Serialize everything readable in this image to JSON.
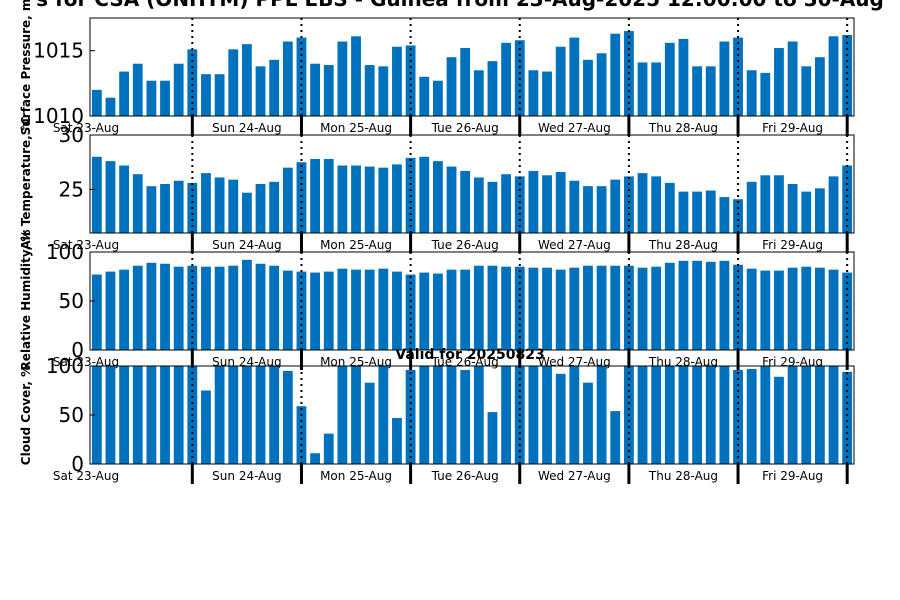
{
  "title": "s for CSA (ONHTM) PPL EBS  - Guinea from 23-Aug-2025 12:00:00 to 30-Aug",
  "valid_text": "Valid for 20250823",
  "colors": {
    "bar": "#0072BD",
    "axis": "#000000",
    "background": "#ffffff"
  },
  "chart_data": [
    {
      "type": "bar",
      "ylabel": "Surface Pressure, m",
      "ylim": [
        1010,
        1017.5
      ],
      "yticks": [
        1010,
        1015
      ],
      "days": [
        "Sat 23-Aug",
        "Sun 24-Aug",
        "Mon 25-Aug",
        "Tue 26-Aug",
        "Wed 27-Aug",
        "Thu 28-Aug",
        "Fri 29-Aug"
      ],
      "values": [
        1012,
        1011.4,
        1013.4,
        1014,
        1012.7,
        1012.7,
        1014,
        1015.1,
        1013.2,
        1013.2,
        1015.1,
        1015.5,
        1013.8,
        1014.3,
        1015.7,
        1016,
        1014,
        1013.9,
        1015.7,
        1016.1,
        1013.9,
        1013.8,
        1015.3,
        1015.4,
        1013,
        1012.7,
        1014.5,
        1015.2,
        1013.5,
        1014.2,
        1015.6,
        1015.8,
        1013.5,
        1013.4,
        1015.3,
        1016,
        1014.3,
        1014.8,
        1016.3,
        1016.5,
        1014.1,
        1014.1,
        1015.6,
        1015.9,
        1013.8,
        1013.8,
        1015.7,
        1016,
        1013.5,
        1013.3,
        1015.2,
        1015.7,
        1013.8,
        1014.5,
        1016.1,
        1016.2
      ]
    },
    {
      "type": "bar",
      "ylabel": "Air Temperature, °C",
      "ylim": [
        21,
        30
      ],
      "yticks": [
        25,
        30
      ],
      "days": [
        "Sat 23-Aug",
        "Sun 24-Aug",
        "Mon 25-Aug",
        "Tue 26-Aug",
        "Wed 27-Aug",
        "Thu 28-Aug",
        "Fri 29-Aug"
      ],
      "values": [
        28,
        27.6,
        27.2,
        26.4,
        25.3,
        25.5,
        25.8,
        25.6,
        26.5,
        26.1,
        25.9,
        24.7,
        25.5,
        25.7,
        27,
        27.5,
        27.8,
        27.8,
        27.2,
        27.2,
        27.1,
        27,
        27.3,
        27.9,
        28,
        27.6,
        27.1,
        26.7,
        26.1,
        25.7,
        26.4,
        26.2,
        26.7,
        26.3,
        26.6,
        25.8,
        25.3,
        25.3,
        25.9,
        26.2,
        26.5,
        26.2,
        25.6,
        24.8,
        24.8,
        24.9,
        24.3,
        24.1,
        25.7,
        26.3,
        26.3,
        25.5,
        24.8,
        25.1,
        26.2,
        27.2
      ]
    },
    {
      "type": "bar",
      "ylabel": "Relative Humidity, %",
      "ylim": [
        0,
        100
      ],
      "yticks": [
        0,
        50,
        100
      ],
      "days": [
        "Sat 23-Aug",
        "Sun 24-Aug",
        "Mon 25-Aug",
        "Tue 26-Aug",
        "Wed 27-Aug",
        "Thu 28-Aug",
        "Fri 29-Aug"
      ],
      "values": [
        77,
        80,
        82,
        86,
        89,
        88,
        85,
        86,
        85,
        85,
        86,
        92,
        88,
        86,
        81,
        80,
        79,
        80,
        83,
        82,
        82,
        83,
        80,
        77,
        79,
        78,
        82,
        82,
        86,
        86,
        85,
        85,
        84,
        84,
        82,
        84,
        86,
        86,
        86,
        86,
        84,
        85,
        89,
        91,
        91,
        90,
        91,
        87,
        83,
        81,
        81,
        84,
        85,
        84,
        82,
        79
      ]
    },
    {
      "type": "bar",
      "ylabel": "Cloud Cover, %",
      "ylim": [
        0,
        100
      ],
      "yticks": [
        0,
        50,
        100
      ],
      "days": [
        "Sat 23-Aug",
        "Sun 24-Aug",
        "Mon 25-Aug",
        "Tue 26-Aug",
        "Wed 27-Aug",
        "Thu 28-Aug",
        "Fri 29-Aug"
      ],
      "values": [
        100,
        100,
        100,
        100,
        100,
        100,
        100,
        100,
        75,
        100,
        100,
        100,
        100,
        100,
        95,
        59,
        11,
        31,
        100,
        100,
        83,
        100,
        47,
        96,
        100,
        100,
        100,
        96,
        100,
        53,
        100,
        100,
        100,
        100,
        92,
        100,
        83,
        100,
        54,
        100,
        100,
        100,
        100,
        100,
        100,
        100,
        100,
        96,
        97,
        100,
        89,
        100,
        100,
        100,
        100,
        94
      ]
    }
  ]
}
